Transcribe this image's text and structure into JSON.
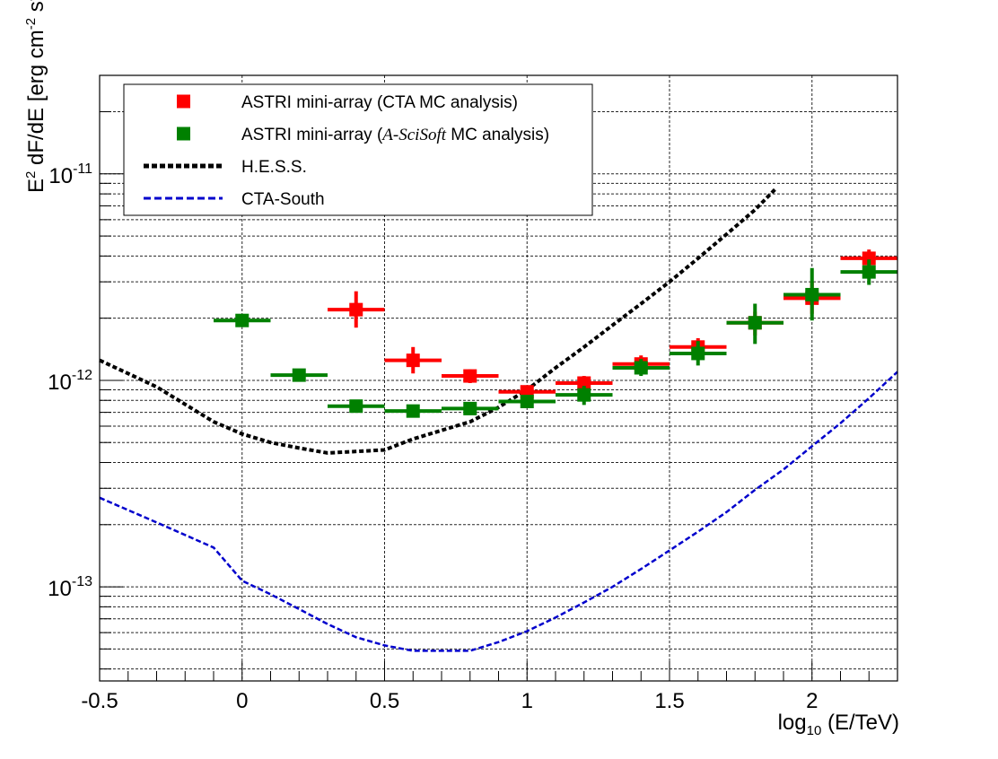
{
  "chart_data": {
    "type": "scatter",
    "x_axis": {
      "label_main": "log",
      "label_sub": "10",
      "label_rest": " (E/TeV)",
      "range": [
        -0.5,
        2.3
      ],
      "ticks": [
        -0.5,
        0,
        0.5,
        1,
        1.5,
        2
      ],
      "tick_labels": [
        "-0.5",
        "0",
        "0.5",
        "1",
        "1.5",
        "2"
      ]
    },
    "y_axis": {
      "scale": "log",
      "range": [
        3.5e-14,
        3e-11
      ],
      "label_parts": [
        "E",
        "2",
        " dF/dE [erg cm",
        "-2",
        " s",
        "-1",
        "]"
      ],
      "ticks": [
        1e-13,
        1e-12,
        1e-11
      ],
      "tick_labels": [
        {
          "base": "10",
          "exp": "-13"
        },
        {
          "base": "10",
          "exp": "-12"
        },
        {
          "base": "10",
          "exp": "-11"
        }
      ]
    },
    "grid": true,
    "legend_position": "top-left",
    "series": [
      {
        "name": "ASTRI mini-array (CTA MC analysis)",
        "kind": "points",
        "color": "#ff0000",
        "points": [
          {
            "x": 0.4,
            "y": 2.2e-12,
            "xerr": 0.1,
            "ylo": 1.8e-12,
            "yhi": 2.7e-12
          },
          {
            "x": 0.6,
            "y": 1.25e-12,
            "xerr": 0.1,
            "ylo": 1.08e-12,
            "yhi": 1.45e-12
          },
          {
            "x": 0.8,
            "y": 1.05e-12,
            "xerr": 0.1,
            "ylo": 9.7e-13,
            "yhi": 1.13e-12
          },
          {
            "x": 1.0,
            "y": 8.8e-13,
            "xerr": 0.1,
            "ylo": 8.2e-13,
            "yhi": 9.4e-13
          },
          {
            "x": 1.2,
            "y": 9.7e-13,
            "xerr": 0.1,
            "ylo": 9e-13,
            "yhi": 1.05e-12
          },
          {
            "x": 1.4,
            "y": 1.2e-12,
            "xerr": 0.1,
            "ylo": 1.1e-12,
            "yhi": 1.32e-12
          },
          {
            "x": 1.6,
            "y": 1.45e-12,
            "xerr": 0.1,
            "ylo": 1.32e-12,
            "yhi": 1.6e-12
          },
          {
            "x": 1.8,
            "y": 1.9e-12,
            "xerr": 0.1,
            "ylo": 1.65e-12,
            "yhi": 2.15e-12
          },
          {
            "x": 2.0,
            "y": 2.5e-12,
            "xerr": 0.1,
            "ylo": 2.1e-12,
            "yhi": 3e-12
          },
          {
            "x": 2.2,
            "y": 3.9e-12,
            "xerr": 0.1,
            "ylo": 3.55e-12,
            "yhi": 4.3e-12
          }
        ]
      },
      {
        "name_parts": [
          "ASTRI mini-array (",
          "A-SciSoft",
          " MC analysis)"
        ],
        "kind": "points",
        "color": "#008000",
        "points": [
          {
            "x": 0.0,
            "y": 1.95e-12,
            "xerr": 0.1,
            "ylo": 1.87e-12,
            "yhi": 2.03e-12
          },
          {
            "x": 0.2,
            "y": 1.06e-12,
            "xerr": 0.1,
            "ylo": 1.01e-12,
            "yhi": 1.11e-12
          },
          {
            "x": 0.4,
            "y": 7.5e-13,
            "xerr": 0.1,
            "ylo": 7.1e-13,
            "yhi": 7.9e-13
          },
          {
            "x": 0.6,
            "y": 7.1e-13,
            "xerr": 0.1,
            "ylo": 6.7e-13,
            "yhi": 7.5e-13
          },
          {
            "x": 0.8,
            "y": 7.3e-13,
            "xerr": 0.1,
            "ylo": 6.9e-13,
            "yhi": 7.7e-13
          },
          {
            "x": 1.0,
            "y": 7.9e-13,
            "xerr": 0.1,
            "ylo": 7.4e-13,
            "yhi": 8.4e-13
          },
          {
            "x": 1.2,
            "y": 8.5e-13,
            "xerr": 0.1,
            "ylo": 7.6e-13,
            "yhi": 9.4e-13
          },
          {
            "x": 1.4,
            "y": 1.15e-12,
            "xerr": 0.1,
            "ylo": 1.05e-12,
            "yhi": 1.27e-12
          },
          {
            "x": 1.6,
            "y": 1.35e-12,
            "xerr": 0.1,
            "ylo": 1.18e-12,
            "yhi": 1.55e-12
          },
          {
            "x": 1.8,
            "y": 1.9e-12,
            "xerr": 0.1,
            "ylo": 1.5e-12,
            "yhi": 2.35e-12
          },
          {
            "x": 2.0,
            "y": 2.6e-12,
            "xerr": 0.1,
            "ylo": 1.95e-12,
            "yhi": 3.5e-12
          },
          {
            "x": 2.2,
            "y": 3.35e-12,
            "xerr": 0.1,
            "ylo": 2.9e-12,
            "yhi": 3.85e-12
          }
        ]
      },
      {
        "name": "H.E.S.S.",
        "kind": "line",
        "color": "#000000",
        "points": [
          [
            -0.5,
            1.25e-12
          ],
          [
            -0.3,
            9.3e-13
          ],
          [
            -0.1,
            6.3e-13
          ],
          [
            0.0,
            5.5e-13
          ],
          [
            0.1,
            5e-13
          ],
          [
            0.2,
            4.7e-13
          ],
          [
            0.3,
            4.45e-13
          ],
          [
            0.5,
            4.6e-13
          ],
          [
            0.6,
            5.2e-13
          ],
          [
            0.8,
            6.3e-13
          ],
          [
            0.9,
            7.4e-13
          ],
          [
            1.0,
            9e-13
          ],
          [
            1.1,
            1.15e-12
          ],
          [
            1.2,
            1.45e-12
          ],
          [
            1.3,
            1.85e-12
          ],
          [
            1.4,
            2.35e-12
          ],
          [
            1.5,
            3e-12
          ],
          [
            1.6,
            3.9e-12
          ],
          [
            1.7,
            5.1e-12
          ],
          [
            1.8,
            6.7e-12
          ],
          [
            1.87,
            8.4e-12
          ]
        ]
      },
      {
        "name": "CTA-South",
        "kind": "line",
        "color": "#0000cc",
        "points": [
          [
            -0.5,
            2.7e-13
          ],
          [
            -0.3,
            2.05e-13
          ],
          [
            -0.1,
            1.55e-13
          ],
          [
            0.0,
            1.07e-13
          ],
          [
            0.1,
            9.2e-14
          ],
          [
            0.2,
            7.8e-14
          ],
          [
            0.3,
            6.6e-14
          ],
          [
            0.4,
            5.7e-14
          ],
          [
            0.5,
            5.2e-14
          ],
          [
            0.6,
            4.9e-14
          ],
          [
            0.8,
            4.9e-14
          ],
          [
            0.9,
            5.4e-14
          ],
          [
            1.0,
            6.1e-14
          ],
          [
            1.1,
            7.1e-14
          ],
          [
            1.2,
            8.4e-14
          ],
          [
            1.3,
            1e-13
          ],
          [
            1.4,
            1.22e-13
          ],
          [
            1.5,
            1.5e-13
          ],
          [
            1.6,
            1.85e-13
          ],
          [
            1.7,
            2.3e-13
          ],
          [
            1.8,
            2.95e-13
          ],
          [
            1.9,
            3.7e-13
          ],
          [
            2.0,
            4.8e-13
          ],
          [
            2.1,
            6.2e-13
          ],
          [
            2.2,
            8.2e-13
          ],
          [
            2.3,
            1.1e-12
          ]
        ]
      }
    ]
  }
}
